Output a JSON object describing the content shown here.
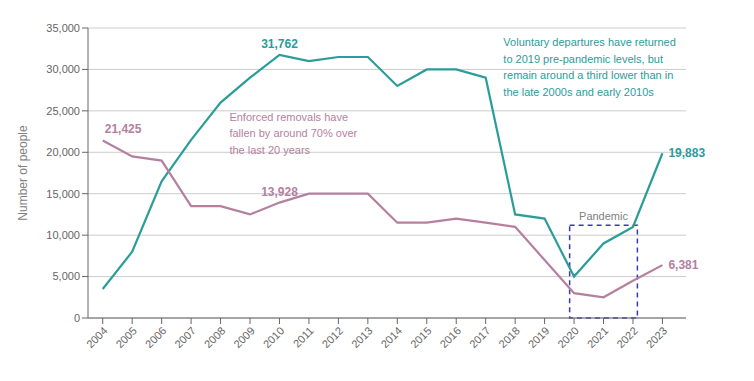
{
  "chart_data": {
    "type": "line",
    "x": [
      2004,
      2005,
      2006,
      2007,
      2008,
      2009,
      2010,
      2011,
      2012,
      2013,
      2014,
      2015,
      2016,
      2017,
      2018,
      2019,
      2020,
      2021,
      2022,
      2023
    ],
    "series": [
      {
        "color": "#2a9d9a",
        "values": [
          3500,
          8000,
          16500,
          21500,
          26000,
          29000,
          31762,
          31000,
          31500,
          31500,
          28000,
          30000,
          30000,
          29000,
          12500,
          12000,
          5000,
          9000,
          11000,
          19883
        ]
      },
      {
        "color": "#b57fa0",
        "values": [
          21425,
          19500,
          19000,
          13500,
          13500,
          12500,
          13928,
          15000,
          15000,
          15000,
          11500,
          11500,
          12000,
          11500,
          11000,
          7000,
          3000,
          2500,
          4500,
          6381
        ]
      }
    ],
    "xlim": [
      2003.5,
      2023.8
    ],
    "xticks": [
      2004,
      2005,
      2006,
      2007,
      2008,
      2009,
      2010,
      2011,
      2012,
      2013,
      2014,
      2015,
      2016,
      2017,
      2018,
      2019,
      2020,
      2021,
      2022,
      2023
    ],
    "ylim": [
      0,
      35000
    ],
    "yticks": [
      0,
      {
        "value": 5000,
        "label": "5,000"
      },
      {
        "value": 10000,
        "label": "10,000"
      },
      {
        "value": 15000,
        "label": "15,000"
      },
      {
        "value": 20000,
        "label": "20,000"
      },
      {
        "value": 25000,
        "label": "25,000"
      },
      {
        "value": 30000,
        "label": "30,000"
      },
      {
        "value": 35000,
        "label": "35,000"
      }
    ],
    "y_label": "Number of people",
    "grid": true,
    "annotations": [
      {
        "text": "31,762",
        "x": 2010,
        "y": 31762,
        "color": "#2a9d9a"
      },
      {
        "text": "21,425",
        "x": 2004,
        "y": 21425,
        "color": "#b57fa0"
      },
      {
        "text": "13,928",
        "x": 2010,
        "y": 13928,
        "color": "#b57fa0"
      },
      {
        "text": "19,883",
        "x": 2023,
        "y": 19883,
        "color": "#2a9d9a"
      },
      {
        "text": "6,381",
        "x": 2023,
        "y": 6381,
        "color": "#b57fa0"
      },
      {
        "text": "Voluntary departures have returned\nto 2019 pre-pandemic levels, but\nremain around a third lower than in\nthe late 2000s and early 2010s",
        "color": "#2a9d9a"
      },
      {
        "text": "Enforced removals have\nfallen by around 70% over\nthe last 20 years",
        "color": "#b57fa0"
      },
      {
        "text": "Pandemic",
        "x": [
          2019.85,
          2022.15
        ],
        "y": [
          0,
          11200
        ],
        "color": "#3a3ab0"
      }
    ]
  }
}
